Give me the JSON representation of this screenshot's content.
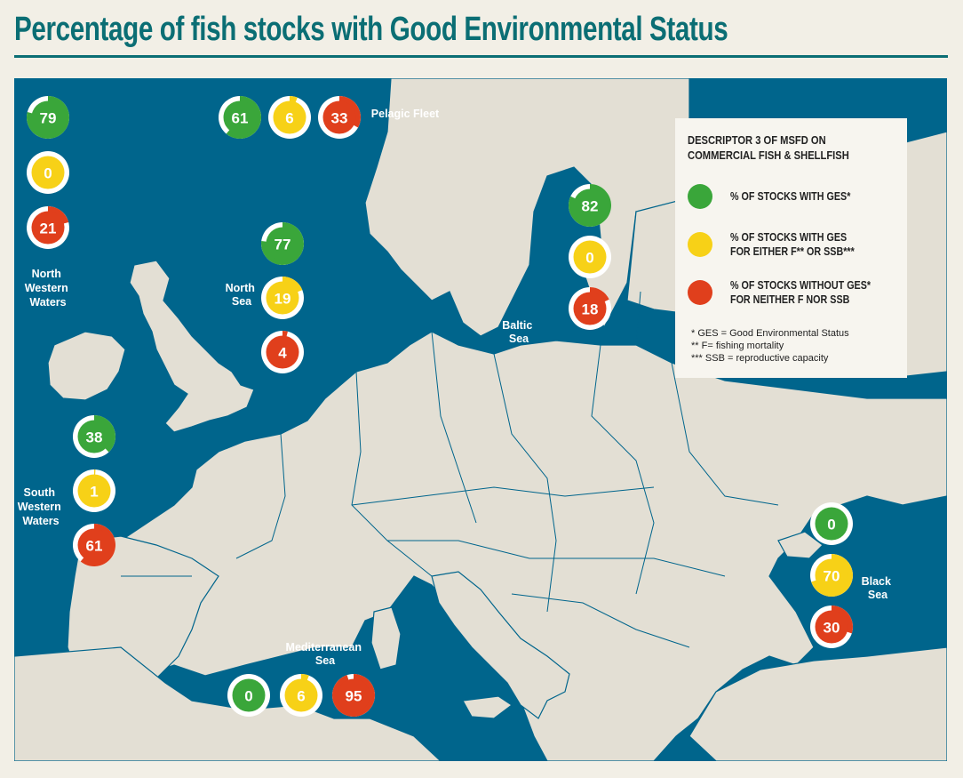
{
  "title": "Percentage of fish stocks with Good Environmental Status",
  "colors": {
    "sea": "#00658c",
    "land": "#e3dfd4",
    "ges": "#3aa63a",
    "either": "#f7d117",
    "neither": "#e03f1c",
    "title": "#0b6e74"
  },
  "legend": {
    "title": "DESCRIPTOR 3 OF MSFD ON\nCOMMERCIAL FISH & SHELLFISH",
    "items": [
      {
        "key": "ges",
        "label": "% OF STOCKS WITH GES*"
      },
      {
        "key": "either",
        "label": "% OF STOCKS WITH GES\nFOR EITHER F** OR SSB***"
      },
      {
        "key": "neither",
        "label": "% OF STOCKS WITHOUT GES*\nFOR NEITHER F NOR SSB"
      }
    ],
    "notes": [
      "* GES = Good Environmental Status",
      "** F= fishing mortality",
      "*** SSB = reproductive capacity"
    ]
  },
  "regions": [
    {
      "name": "North\nWestern\nWaters",
      "ges": 79,
      "either": 0,
      "neither": 21
    },
    {
      "name": "Pelagic Fleet",
      "ges": 61,
      "either": 6,
      "neither": 33
    },
    {
      "name": "North\nSea",
      "ges": 77,
      "either": 19,
      "neither": 4
    },
    {
      "name": "Baltic\nSea",
      "ges": 82,
      "either": 0,
      "neither": 18
    },
    {
      "name": "South\nWestern\nWaters",
      "ges": 38,
      "either": 1,
      "neither": 61
    },
    {
      "name": "Mediterranean\nSea",
      "ges": 0,
      "either": 6,
      "neither": 95
    },
    {
      "name": "Black\nSea",
      "ges": 0,
      "either": 70,
      "neither": 30
    }
  ]
}
